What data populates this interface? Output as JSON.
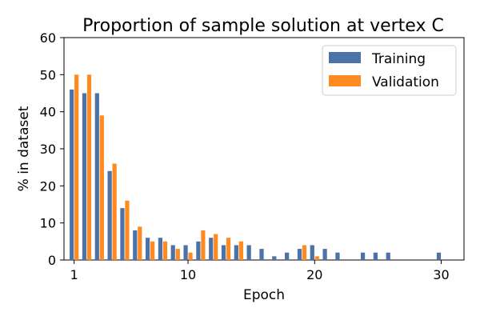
{
  "chart_data": {
    "type": "bar",
    "title": "Proportion of sample solution at vertex C",
    "xlabel": "Epoch",
    "ylabel": "% in dataset",
    "xlim": [
      0.2,
      31.8
    ],
    "ylim": [
      0,
      60
    ],
    "xticks": [
      1,
      10,
      20,
      30
    ],
    "yticks": [
      0,
      10,
      20,
      30,
      40,
      50,
      60
    ],
    "grid": false,
    "legend": "top-right",
    "series": [
      {
        "name": "Training",
        "color": "#4c72a8",
        "x": [
          1,
          2,
          3,
          4,
          5,
          6,
          7,
          8,
          9,
          10,
          11,
          12,
          13,
          14,
          15,
          16,
          17,
          18,
          19,
          20,
          21,
          22,
          24,
          25,
          26,
          30
        ],
        "values": [
          46,
          45,
          45,
          24,
          14,
          8,
          6,
          6,
          4,
          4,
          5,
          6,
          4,
          4,
          4,
          3,
          1,
          2,
          3,
          4,
          3,
          2,
          2,
          2,
          2,
          2
        ]
      },
      {
        "name": "Validation",
        "color": "#ff8a1f",
        "x": [
          1,
          2,
          3,
          4,
          5,
          6,
          7,
          8,
          9,
          10,
          11,
          12,
          13,
          14,
          19,
          20
        ],
        "values": [
          50,
          50,
          39,
          26,
          16,
          9,
          5,
          5,
          3,
          2,
          8,
          7,
          6,
          5,
          4,
          1
        ]
      }
    ]
  }
}
